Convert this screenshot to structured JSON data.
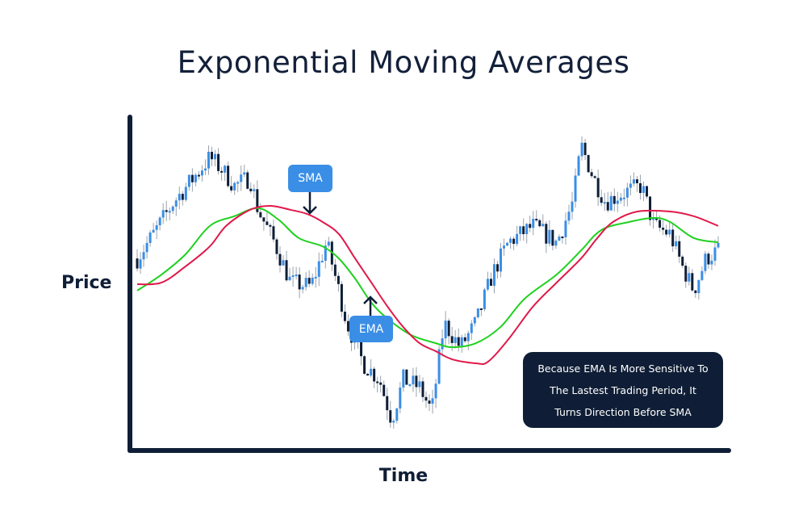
{
  "chart_data": {
    "type": "line",
    "title": "Exponential Moving Averages",
    "xlabel": "Time",
    "ylabel": "Price",
    "xlim": [
      0,
      100
    ],
    "ylim": [
      0,
      100
    ],
    "grid": false,
    "price_path": [
      [
        0,
        56.6
      ],
      [
        2.8,
        63.9
      ],
      [
        6.3,
        73.5
      ],
      [
        9.7,
        80.7
      ],
      [
        12.5,
        86.7
      ],
      [
        14.6,
        83.1
      ],
      [
        16.7,
        78.3
      ],
      [
        19.4,
        80.7
      ],
      [
        20.8,
        71.1
      ],
      [
        23.6,
        61.4
      ],
      [
        26.4,
        49.4
      ],
      [
        29.9,
        48.2
      ],
      [
        32.6,
        61.4
      ],
      [
        34,
        51.8
      ],
      [
        36.1,
        37.3
      ],
      [
        38.9,
        25.3
      ],
      [
        41.7,
        20.5
      ],
      [
        43.8,
        8.4
      ],
      [
        45.8,
        20.5
      ],
      [
        48.6,
        18.1
      ],
      [
        50.7,
        10.8
      ],
      [
        52.8,
        37.3
      ],
      [
        55.6,
        30.1
      ],
      [
        58.3,
        37.3
      ],
      [
        61.1,
        51.8
      ],
      [
        63.9,
        61.4
      ],
      [
        68.1,
        66.3
      ],
      [
        72.2,
        61.4
      ],
      [
        75,
        73.5
      ],
      [
        76.4,
        90.4
      ],
      [
        78.5,
        80.7
      ],
      [
        80.6,
        73.5
      ],
      [
        83.3,
        75.9
      ],
      [
        86.8,
        78.3
      ],
      [
        88.9,
        66.3
      ],
      [
        91.7,
        63.9
      ],
      [
        93.8,
        54.2
      ],
      [
        95.8,
        47
      ],
      [
        97.9,
        56.6
      ],
      [
        100,
        59
      ]
    ],
    "series": [
      {
        "name": "SMA",
        "color": "#e0194a",
        "points": [
          [
            0,
            48.9
          ],
          [
            4.2,
            49.4
          ],
          [
            8.3,
            54.2
          ],
          [
            12.5,
            60.2
          ],
          [
            15.3,
            66.3
          ],
          [
            19.4,
            71.1
          ],
          [
            22.9,
            72.3
          ],
          [
            26.4,
            71.1
          ],
          [
            29.2,
            69.9
          ],
          [
            31.9,
            67.5
          ],
          [
            34.7,
            63.9
          ],
          [
            37.5,
            56.6
          ],
          [
            40.3,
            49.4
          ],
          [
            43.1,
            42.2
          ],
          [
            45.8,
            36.1
          ],
          [
            48.6,
            31.3
          ],
          [
            51.4,
            28.9
          ],
          [
            54.2,
            26.5
          ],
          [
            58.3,
            25.3
          ],
          [
            60.4,
            25.8
          ],
          [
            63.9,
            32.5
          ],
          [
            68.1,
            42.2
          ],
          [
            72.2,
            49.4
          ],
          [
            76.4,
            56.6
          ],
          [
            79.2,
            62.7
          ],
          [
            81.9,
            67.5
          ],
          [
            86.1,
            70.6
          ],
          [
            91.7,
            70.6
          ],
          [
            95.8,
            69.2
          ],
          [
            100,
            66.3
          ]
        ]
      },
      {
        "name": "EMA",
        "color": "#1fd11f",
        "points": [
          [
            0,
            47
          ],
          [
            4.2,
            51.8
          ],
          [
            8.3,
            57.8
          ],
          [
            12.5,
            66.3
          ],
          [
            16.7,
            69.2
          ],
          [
            20.8,
            71.6
          ],
          [
            24.3,
            68.2
          ],
          [
            27.8,
            62.7
          ],
          [
            31.9,
            60.2
          ],
          [
            34.7,
            56.6
          ],
          [
            37.5,
            50.6
          ],
          [
            40.3,
            43.4
          ],
          [
            43.1,
            38.6
          ],
          [
            47.2,
            33.7
          ],
          [
            51.4,
            31.3
          ],
          [
            54.2,
            30.1
          ],
          [
            58.3,
            31.3
          ],
          [
            62.5,
            36.1
          ],
          [
            66.7,
            44.6
          ],
          [
            72.2,
            51.8
          ],
          [
            76.4,
            59
          ],
          [
            79.9,
            65.1
          ],
          [
            84.7,
            67.5
          ],
          [
            88.9,
            68.7
          ],
          [
            91.7,
            67.5
          ],
          [
            95.8,
            62.7
          ],
          [
            100,
            61.4
          ]
        ]
      }
    ],
    "candle_colors": {
      "up": "#3a8ee6",
      "down": "#0f1e36"
    },
    "annotations": {
      "sma_label": "SMA",
      "ema_label": "EMA",
      "note_lines": [
        "Because EMA Is More Sensitive To",
        "The Lastest Trading Period, It",
        "Turns Direction Before SMA"
      ]
    }
  }
}
